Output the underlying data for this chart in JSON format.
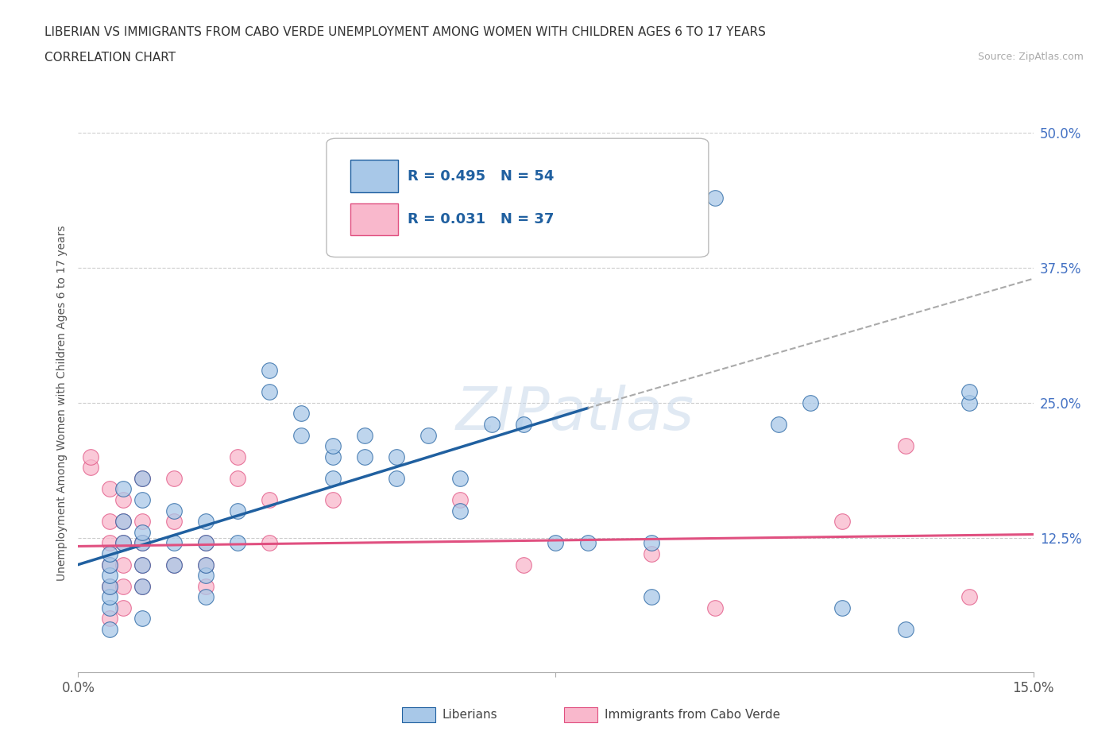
{
  "title_line1": "LIBERIAN VS IMMIGRANTS FROM CABO VERDE UNEMPLOYMENT AMONG WOMEN WITH CHILDREN AGES 6 TO 17 YEARS",
  "title_line2": "CORRELATION CHART",
  "source_text": "Source: ZipAtlas.com",
  "ylabel": "Unemployment Among Women with Children Ages 6 to 17 years",
  "xlim": [
    0.0,
    0.15
  ],
  "ylim": [
    0.0,
    0.5
  ],
  "ytick_labels": [
    "12.5%",
    "25.0%",
    "37.5%",
    "50.0%"
  ],
  "ytick_values": [
    0.125,
    0.25,
    0.375,
    0.5
  ],
  "liberian_color": "#a8c8e8",
  "cabo_verde_color": "#f9b8cc",
  "liberian_line_color": "#2060a0",
  "cabo_verde_line_color": "#e05080",
  "background_color": "#ffffff",
  "liberian_scatter": [
    [
      0.005,
      0.04
    ],
    [
      0.005,
      0.06
    ],
    [
      0.005,
      0.07
    ],
    [
      0.005,
      0.08
    ],
    [
      0.005,
      0.09
    ],
    [
      0.005,
      0.1
    ],
    [
      0.005,
      0.11
    ],
    [
      0.007,
      0.12
    ],
    [
      0.007,
      0.14
    ],
    [
      0.007,
      0.17
    ],
    [
      0.01,
      0.05
    ],
    [
      0.01,
      0.08
    ],
    [
      0.01,
      0.1
    ],
    [
      0.01,
      0.12
    ],
    [
      0.01,
      0.13
    ],
    [
      0.01,
      0.16
    ],
    [
      0.01,
      0.18
    ],
    [
      0.015,
      0.1
    ],
    [
      0.015,
      0.12
    ],
    [
      0.015,
      0.15
    ],
    [
      0.02,
      0.07
    ],
    [
      0.02,
      0.09
    ],
    [
      0.02,
      0.1
    ],
    [
      0.02,
      0.12
    ],
    [
      0.02,
      0.14
    ],
    [
      0.025,
      0.12
    ],
    [
      0.025,
      0.15
    ],
    [
      0.03,
      0.26
    ],
    [
      0.03,
      0.28
    ],
    [
      0.035,
      0.22
    ],
    [
      0.035,
      0.24
    ],
    [
      0.04,
      0.18
    ],
    [
      0.04,
      0.2
    ],
    [
      0.04,
      0.21
    ],
    [
      0.045,
      0.2
    ],
    [
      0.045,
      0.22
    ],
    [
      0.05,
      0.18
    ],
    [
      0.05,
      0.2
    ],
    [
      0.055,
      0.22
    ],
    [
      0.06,
      0.15
    ],
    [
      0.06,
      0.18
    ],
    [
      0.065,
      0.23
    ],
    [
      0.07,
      0.23
    ],
    [
      0.075,
      0.12
    ],
    [
      0.08,
      0.12
    ],
    [
      0.09,
      0.07
    ],
    [
      0.1,
      0.44
    ],
    [
      0.11,
      0.23
    ],
    [
      0.115,
      0.25
    ],
    [
      0.12,
      0.06
    ],
    [
      0.13,
      0.04
    ],
    [
      0.14,
      0.25
    ],
    [
      0.14,
      0.26
    ],
    [
      0.09,
      0.12
    ]
  ],
  "cabo_verde_scatter": [
    [
      0.002,
      0.19
    ],
    [
      0.002,
      0.2
    ],
    [
      0.005,
      0.05
    ],
    [
      0.005,
      0.08
    ],
    [
      0.005,
      0.1
    ],
    [
      0.005,
      0.12
    ],
    [
      0.005,
      0.14
    ],
    [
      0.005,
      0.17
    ],
    [
      0.007,
      0.06
    ],
    [
      0.007,
      0.08
    ],
    [
      0.007,
      0.1
    ],
    [
      0.007,
      0.12
    ],
    [
      0.007,
      0.14
    ],
    [
      0.007,
      0.16
    ],
    [
      0.01,
      0.08
    ],
    [
      0.01,
      0.1
    ],
    [
      0.01,
      0.12
    ],
    [
      0.01,
      0.14
    ],
    [
      0.01,
      0.18
    ],
    [
      0.015,
      0.1
    ],
    [
      0.015,
      0.14
    ],
    [
      0.015,
      0.18
    ],
    [
      0.02,
      0.08
    ],
    [
      0.02,
      0.1
    ],
    [
      0.02,
      0.12
    ],
    [
      0.025,
      0.18
    ],
    [
      0.025,
      0.2
    ],
    [
      0.03,
      0.12
    ],
    [
      0.03,
      0.16
    ],
    [
      0.04,
      0.16
    ],
    [
      0.06,
      0.16
    ],
    [
      0.07,
      0.1
    ],
    [
      0.09,
      0.11
    ],
    [
      0.1,
      0.06
    ],
    [
      0.12,
      0.14
    ],
    [
      0.13,
      0.21
    ],
    [
      0.14,
      0.07
    ]
  ],
  "liberian_solid_line": [
    [
      0.0,
      0.1
    ],
    [
      0.08,
      0.245
    ]
  ],
  "liberian_dashed_line": [
    [
      0.08,
      0.245
    ],
    [
      0.15,
      0.365
    ]
  ],
  "cabo_verde_line": [
    [
      0.0,
      0.117
    ],
    [
      0.15,
      0.128
    ]
  ]
}
